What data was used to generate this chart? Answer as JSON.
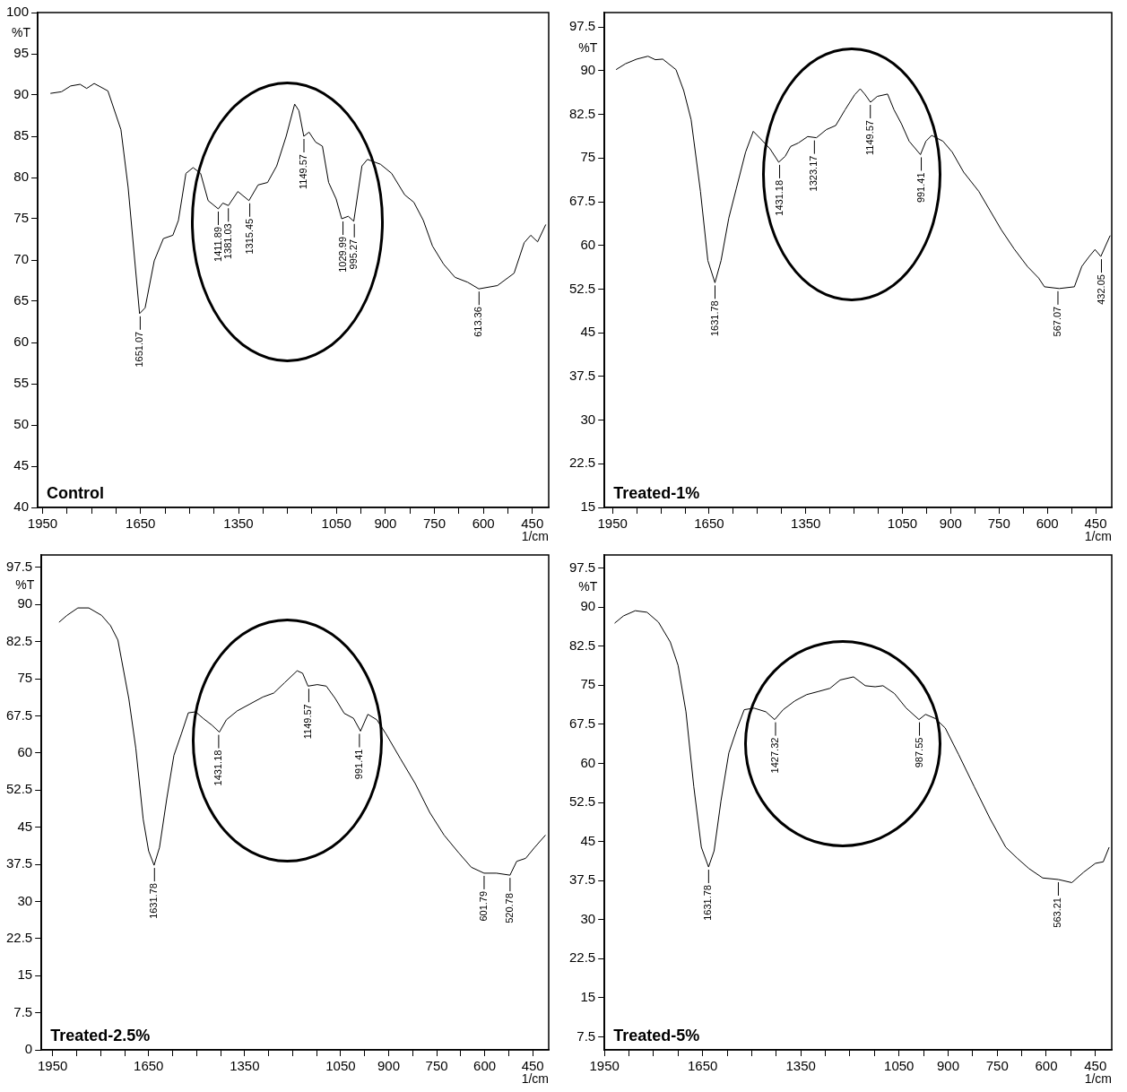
{
  "chart_data": [
    {
      "type": "line",
      "title": "Control",
      "xlabel": "1/cm",
      "ylabel": "%T",
      "color": "#000000",
      "x": [
        1926,
        1892,
        1864,
        1835,
        1815,
        1792,
        1750,
        1710,
        1688,
        1653,
        1636,
        1608,
        1580,
        1551,
        1534,
        1511,
        1489,
        1466,
        1443,
        1412,
        1398,
        1381,
        1352,
        1318,
        1290,
        1261,
        1233,
        1204,
        1178,
        1165,
        1150,
        1134,
        1114,
        1093,
        1074,
        1051,
        1034,
        1014,
        997,
        972,
        955,
        915,
        881,
        841,
        813,
        784,
        756,
        722,
        687,
        648,
        614,
        557,
        506,
        475,
        455,
        434,
        409
      ],
      "values": [
        90.2,
        90.4,
        91.1,
        91.3,
        90.8,
        91.4,
        90.5,
        85.8,
        78.8,
        63.5,
        64.2,
        69.9,
        72.6,
        73.0,
        74.8,
        80.5,
        81.2,
        80.5,
        77.2,
        76.2,
        76.9,
        76.6,
        78.3,
        77.2,
        79.1,
        79.4,
        81.4,
        85.0,
        88.9,
        88.1,
        85.0,
        85.5,
        84.3,
        83.8,
        79.4,
        77.4,
        75.0,
        75.3,
        74.7,
        81.4,
        82.2,
        81.6,
        80.5,
        77.9,
        77.0,
        74.8,
        71.7,
        69.5,
        67.9,
        67.3,
        66.5,
        66.9,
        68.4,
        72.1,
        73.0,
        72.2,
        74.3
      ],
      "xlim": [
        1965,
        400
      ],
      "xticks": [
        1950,
        {
          "value": 1875,
          "label": null
        },
        {
          "value": 1800,
          "label": null
        },
        {
          "value": 1725,
          "label": null
        },
        1650,
        {
          "value": 1575,
          "label": null
        },
        {
          "value": 1500,
          "label": null
        },
        {
          "value": 1425,
          "label": null
        },
        1350,
        {
          "value": 1275,
          "label": null
        },
        {
          "value": 1200,
          "label": null
        },
        {
          "value": 1125,
          "label": null
        },
        1050,
        {
          "value": 975,
          "label": null
        },
        900,
        {
          "value": 825,
          "label": null
        },
        750,
        {
          "value": 675,
          "label": null
        },
        600,
        {
          "value": 525,
          "label": null
        },
        450
      ],
      "ylim": [
        40,
        100
      ],
      "yticks": [
        40,
        45,
        50,
        55,
        60,
        65,
        70,
        75,
        80,
        85,
        90,
        95,
        100
      ],
      "annotations": [
        {
          "text": "1651.07",
          "x": 1651.07,
          "y": 63.5
        },
        {
          "text": "1411.89",
          "x": 1411.89,
          "y": 76.2
        },
        {
          "text": "1381.03",
          "x": 1381.03,
          "y": 76.6
        },
        {
          "text": "1315.45",
          "x": 1315.45,
          "y": 77.2
        },
        {
          "text": "1149.57",
          "x": 1149.57,
          "y": 85.0
        },
        {
          "text": "1029.99",
          "x": 1029.99,
          "y": 75.0
        },
        {
          "text": "995.27",
          "x": 995.27,
          "y": 74.7
        },
        {
          "text": "613.36",
          "x": 613.36,
          "y": 66.5
        }
      ]
    },
    {
      "type": "line",
      "title": "Treated-1%",
      "xlabel": "1/cm",
      "ylabel": "%T",
      "color": "#000000",
      "x": [
        1939,
        1910,
        1875,
        1840,
        1817,
        1794,
        1753,
        1729,
        1706,
        1677,
        1654,
        1632,
        1613,
        1589,
        1566,
        1537,
        1513,
        1490,
        1461,
        1434,
        1414,
        1397,
        1373,
        1344,
        1317,
        1286,
        1257,
        1228,
        1198,
        1181,
        1167,
        1149,
        1128,
        1096,
        1076,
        1053,
        1029,
        994,
        977,
        959,
        924,
        895,
        860,
        813,
        778,
        743,
        703,
        662,
        627,
        609,
        563,
        516,
        493,
        470,
        452,
        434,
        405
      ],
      "values": [
        90.2,
        91.2,
        92.0,
        92.5,
        91.9,
        92.0,
        90.2,
        86.6,
        81.6,
        69.3,
        57.4,
        53.6,
        57.4,
        64.7,
        69.7,
        76.0,
        79.6,
        78.3,
        76.6,
        74.3,
        75.3,
        77.0,
        77.6,
        78.7,
        78.5,
        79.9,
        80.6,
        83.3,
        85.9,
        86.9,
        86.0,
        84.6,
        85.6,
        86.0,
        83.3,
        80.9,
        77.9,
        75.6,
        77.9,
        78.9,
        77.9,
        76.0,
        72.6,
        69.3,
        66.0,
        62.7,
        59.4,
        56.4,
        54.4,
        52.9,
        52.6,
        52.9,
        56.4,
        58.1,
        59.3,
        58.1,
        61.7
      ],
      "xlim": [
        1975,
        400
      ],
      "xticks": [
        1950,
        {
          "value": 1875,
          "label": null
        },
        {
          "value": 1800,
          "label": null
        },
        {
          "value": 1725,
          "label": null
        },
        1650,
        {
          "value": 1575,
          "label": null
        },
        {
          "value": 1500,
          "label": null
        },
        {
          "value": 1425,
          "label": null
        },
        1350,
        {
          "value": 1275,
          "label": null
        },
        {
          "value": 1200,
          "label": null
        },
        {
          "value": 1125,
          "label": null
        },
        1050,
        {
          "value": 975,
          "label": null
        },
        900,
        {
          "value": 825,
          "label": null
        },
        750,
        {
          "value": 675,
          "label": null
        },
        600,
        {
          "value": 525,
          "label": null
        },
        450
      ],
      "ylim": [
        15,
        100
      ],
      "yticks": [
        15,
        22.5,
        30,
        37.5,
        45,
        52.5,
        60,
        67.5,
        75,
        82.5,
        90,
        97.5
      ],
      "annotations": [
        {
          "text": "1631.78",
          "x": 1631.78,
          "y": 53.6
        },
        {
          "text": "1431.18",
          "x": 1431.18,
          "y": 74.3
        },
        {
          "text": "1323.17",
          "x": 1323.17,
          "y": 78.5
        },
        {
          "text": "1149.57",
          "x": 1149.57,
          "y": 84.6
        },
        {
          "text": "991.41",
          "x": 991.41,
          "y": 75.6
        },
        {
          "text": "567.07",
          "x": 567.07,
          "y": 52.6
        },
        {
          "text": "432.05",
          "x": 432.05,
          "y": 58.1
        }
      ]
    },
    {
      "type": "line",
      "title": "Treated-2.5%",
      "xlabel": "1/cm",
      "ylabel": "%T",
      "color": "#000000",
      "x": [
        1930,
        1905,
        1871,
        1837,
        1797,
        1769,
        1746,
        1712,
        1690,
        1667,
        1650,
        1633,
        1616,
        1593,
        1571,
        1548,
        1526,
        1503,
        1480,
        1452,
        1429,
        1407,
        1373,
        1333,
        1293,
        1259,
        1225,
        1186,
        1169,
        1152,
        1123,
        1095,
        1067,
        1039,
        1010,
        988,
        965,
        937,
        908,
        863,
        817,
        772,
        727,
        681,
        642,
        602,
        563,
        521,
        500,
        472,
        444,
        410
      ],
      "values": [
        86.4,
        87.8,
        89.3,
        89.3,
        87.8,
        85.7,
        82.8,
        71.0,
        60.9,
        46.6,
        40.2,
        37.3,
        40.9,
        50.9,
        59.5,
        63.8,
        68.1,
        68.3,
        67.0,
        65.6,
        64.2,
        66.7,
        68.5,
        69.9,
        71.3,
        72.1,
        74.2,
        76.6,
        76.1,
        73.5,
        73.8,
        73.5,
        71.0,
        68.0,
        67.0,
        64.4,
        67.8,
        66.7,
        63.8,
        58.8,
        53.8,
        48.0,
        43.4,
        39.8,
        36.9,
        35.7,
        35.7,
        35.3,
        38.1,
        38.7,
        40.9,
        43.4
      ],
      "xlim": [
        1985,
        400
      ],
      "xticks": [
        1950,
        {
          "value": 1875,
          "label": null
        },
        {
          "value": 1800,
          "label": null
        },
        {
          "value": 1725,
          "label": null
        },
        1650,
        {
          "value": 1575,
          "label": null
        },
        {
          "value": 1500,
          "label": null
        },
        {
          "value": 1425,
          "label": null
        },
        1350,
        {
          "value": 1275,
          "label": null
        },
        {
          "value": 1200,
          "label": null
        },
        {
          "value": 1125,
          "label": null
        },
        1050,
        {
          "value": 975,
          "label": null
        },
        900,
        {
          "value": 825,
          "label": null
        },
        750,
        {
          "value": 675,
          "label": null
        },
        600,
        {
          "value": 525,
          "label": null
        },
        450
      ],
      "ylim": [
        0,
        100
      ],
      "yticks": [
        0,
        7.5,
        15,
        22.5,
        30,
        37.5,
        45,
        52.5,
        60,
        67.5,
        75,
        82.5,
        90,
        97.5
      ],
      "annotations": [
        {
          "text": "1631.78",
          "x": 1631.78,
          "y": 37.3
        },
        {
          "text": "1431.18",
          "x": 1431.18,
          "y": 64.2
        },
        {
          "text": "1149.57",
          "x": 1149.57,
          "y": 73.5
        },
        {
          "text": "991.41",
          "x": 991.41,
          "y": 64.4
        },
        {
          "text": "601.79",
          "x": 601.79,
          "y": 35.7
        },
        {
          "text": "520.78",
          "x": 520.78,
          "y": 35.3
        }
      ]
    },
    {
      "type": "line",
      "title": "Treated-5%",
      "xlabel": "1/cm",
      "ylabel": "%T",
      "color": "#000000",
      "x": [
        1919,
        1892,
        1856,
        1820,
        1785,
        1749,
        1725,
        1701,
        1677,
        1654,
        1632,
        1615,
        1594,
        1570,
        1546,
        1523,
        1493,
        1457,
        1430,
        1404,
        1368,
        1332,
        1296,
        1261,
        1230,
        1189,
        1153,
        1123,
        1099,
        1064,
        1028,
        989,
        969,
        939,
        909,
        868,
        820,
        772,
        724,
        689,
        653,
        611,
        563,
        522,
        486,
        450,
        426,
        408
      ],
      "values": [
        86.9,
        88.3,
        89.3,
        89.0,
        87.1,
        83.3,
        78.8,
        69.9,
        55.5,
        43.9,
        40.1,
        43.2,
        52.8,
        62.0,
        66.5,
        70.3,
        70.6,
        69.9,
        68.4,
        70.3,
        72.0,
        73.2,
        73.8,
        74.4,
        76.0,
        76.6,
        74.9,
        74.7,
        74.9,
        73.4,
        70.6,
        68.4,
        69.4,
        68.6,
        66.8,
        61.7,
        55.5,
        49.4,
        43.9,
        41.8,
        39.8,
        38.0,
        37.7,
        37.1,
        39.1,
        40.8,
        41.1,
        43.9
      ],
      "xlim": [
        1950,
        400
      ],
      "xticks": [
        1950,
        {
          "value": 1875,
          "label": null
        },
        {
          "value": 1800,
          "label": null
        },
        {
          "value": 1725,
          "label": null
        },
        1650,
        {
          "value": 1575,
          "label": null
        },
        {
          "value": 1500,
          "label": null
        },
        {
          "value": 1425,
          "label": null
        },
        1350,
        {
          "value": 1275,
          "label": null
        },
        {
          "value": 1200,
          "label": null
        },
        {
          "value": 1125,
          "label": null
        },
        1050,
        {
          "value": 975,
          "label": null
        },
        900,
        {
          "value": 825,
          "label": null
        },
        750,
        {
          "value": 675,
          "label": null
        },
        600,
        {
          "value": 525,
          "label": null
        },
        450
      ],
      "ylim": [
        5,
        100
      ],
      "yticks": [
        7.5,
        15,
        22.5,
        30,
        37.5,
        45,
        52.5,
        60,
        67.5,
        75,
        82.5,
        90,
        97.5
      ],
      "annotations": [
        {
          "text": "1631.78",
          "x": 1631.78,
          "y": 40.1
        },
        {
          "text": "1427.32",
          "x": 1427.32,
          "y": 68.4
        },
        {
          "text": "987.55",
          "x": 987.55,
          "y": 68.4
        },
        {
          "text": "563.21",
          "x": 563.21,
          "y": 37.7
        }
      ]
    }
  ]
}
